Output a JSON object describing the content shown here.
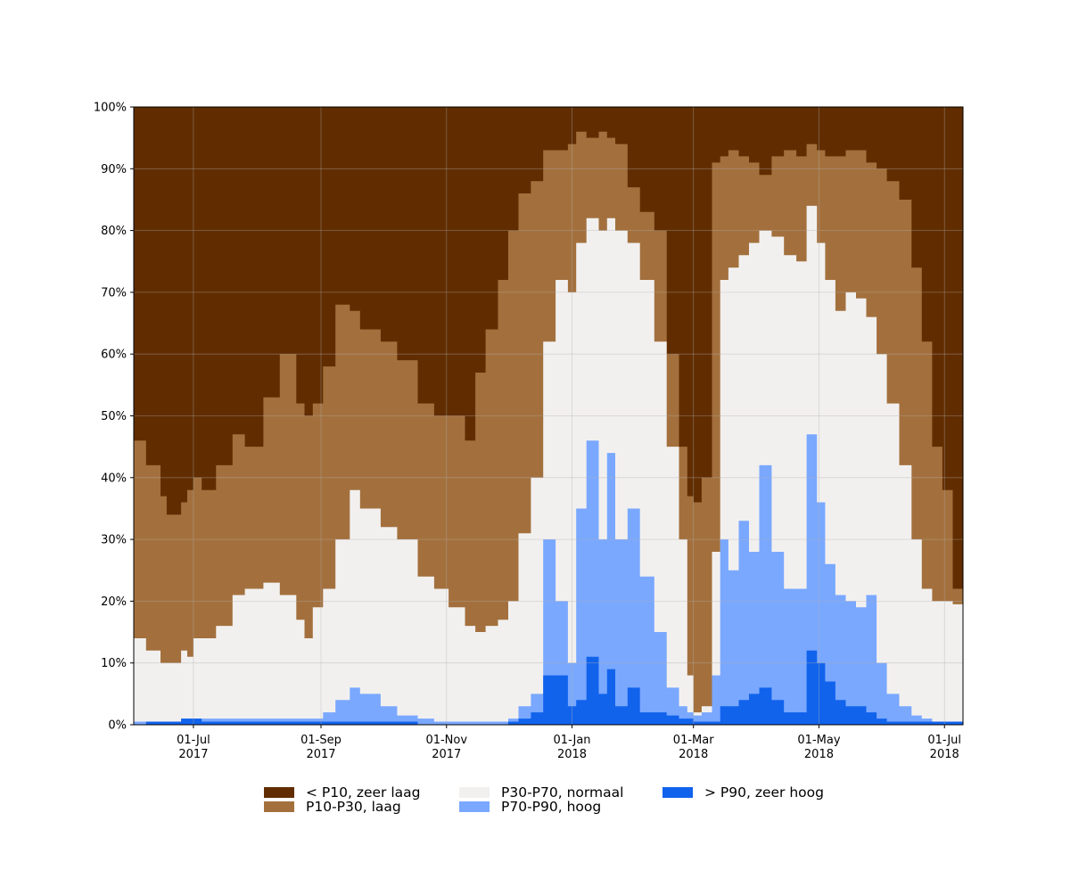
{
  "chart_data": {
    "type": "area",
    "stacked": true,
    "normalized_percent": true,
    "title": "",
    "xlabel": "",
    "ylabel": "",
    "x_range": [
      "2017-06-02",
      "2018-07-10"
    ],
    "ylim": [
      0,
      100
    ],
    "y_ticks": [
      "0%",
      "10%",
      "20%",
      "30%",
      "40%",
      "50%",
      "60%",
      "70%",
      "80%",
      "90%",
      "100%"
    ],
    "x_ticks": [
      {
        "date": "2017-07-01",
        "label": "01-Jul",
        "year": "2017"
      },
      {
        "date": "2017-09-01",
        "label": "01-Sep",
        "year": "2017"
      },
      {
        "date": "2017-11-01",
        "label": "01-Nov",
        "year": "2017"
      },
      {
        "date": "2018-01-01",
        "label": "01-Jan",
        "year": "2018"
      },
      {
        "date": "2018-03-01",
        "label": "01-Mar",
        "year": "2018"
      },
      {
        "date": "2018-05-01",
        "label": "01-May",
        "year": "2018"
      },
      {
        "date": "2018-07-01",
        "label": "01-Jul",
        "year": "2018"
      }
    ],
    "grid": true,
    "legend_position": "bottom",
    "series": [
      {
        "name": "< P10, zeer laag",
        "color": "#612d00"
      },
      {
        "name": "P10-P30, laag",
        "color": "#a3703d"
      },
      {
        "name": "P30-P70, normaal",
        "color": "#f2f0ef"
      },
      {
        "name": "P70-P90, hoog",
        "color": "#7aa8ff"
      },
      {
        "name": "> P90, zeer hoog",
        "color": "#1163ec"
      }
    ],
    "cumulative_boundaries_percent": {
      "x": [
        "2017-06-02",
        "2017-06-08",
        "2017-06-15",
        "2017-06-18",
        "2017-06-25",
        "2017-06-28",
        "2017-07-01",
        "2017-07-05",
        "2017-07-12",
        "2017-07-20",
        "2017-07-26",
        "2017-08-04",
        "2017-08-12",
        "2017-08-20",
        "2017-08-24",
        "2017-08-28",
        "2017-09-02",
        "2017-09-08",
        "2017-09-15",
        "2017-09-20",
        "2017-09-30",
        "2017-10-08",
        "2017-10-18",
        "2017-10-26",
        "2017-11-02",
        "2017-11-10",
        "2017-11-15",
        "2017-11-20",
        "2017-11-26",
        "2017-12-01",
        "2017-12-06",
        "2017-12-12",
        "2017-12-18",
        "2017-12-24",
        "2017-12-30",
        "2018-01-03",
        "2018-01-08",
        "2018-01-14",
        "2018-01-18",
        "2018-01-22",
        "2018-01-28",
        "2018-02-03",
        "2018-02-10",
        "2018-02-16",
        "2018-02-22",
        "2018-02-26",
        "2018-03-01",
        "2018-03-05",
        "2018-03-10",
        "2018-03-14",
        "2018-03-18",
        "2018-03-23",
        "2018-03-28",
        "2018-04-02",
        "2018-04-08",
        "2018-04-14",
        "2018-04-20",
        "2018-04-25",
        "2018-04-30",
        "2018-05-04",
        "2018-05-09",
        "2018-05-14",
        "2018-05-19",
        "2018-05-24",
        "2018-05-29",
        "2018-06-03",
        "2018-06-09",
        "2018-06-15",
        "2018-06-20",
        "2018-06-25",
        "2018-06-30",
        "2018-07-05",
        "2018-07-10"
      ],
      "zeer_hoog_top": [
        0,
        0.5,
        0.5,
        0.5,
        1,
        1,
        1,
        0.5,
        0.5,
        0.5,
        0.5,
        0.5,
        0.5,
        0.5,
        0.5,
        0.5,
        0.5,
        0.5,
        0.5,
        0.5,
        0.5,
        0.5,
        0,
        0,
        0,
        0,
        0,
        0,
        0,
        0.5,
        1,
        2,
        8,
        8,
        3,
        4,
        11,
        5,
        9,
        3,
        6,
        2,
        2,
        1.5,
        1,
        1,
        0.5,
        0.5,
        0.5,
        3,
        3,
        4,
        5,
        6,
        4,
        2,
        2,
        12,
        10,
        7,
        4,
        3,
        3,
        2,
        1,
        0.5,
        0.5,
        0.5,
        0.5,
        0.5,
        0.5,
        0.5,
        0.5
      ],
      "hoog_top": [
        0.5,
        0.5,
        0.5,
        0.5,
        1,
        1,
        1,
        1,
        1,
        1,
        1,
        1,
        1,
        1,
        1,
        1,
        2,
        4,
        6,
        5,
        3,
        1.5,
        1,
        0.5,
        0.5,
        0.5,
        0.5,
        0.5,
        0.5,
        1,
        3,
        5,
        30,
        20,
        10,
        35,
        46,
        30,
        44,
        30,
        35,
        24,
        15,
        6,
        3,
        2,
        1.5,
        2,
        8,
        30,
        25,
        33,
        28,
        42,
        28,
        22,
        22,
        47,
        36,
        26,
        21,
        20,
        19,
        21,
        10,
        5,
        3,
        1.5,
        1,
        0.5,
        0.5,
        0.5,
        0.5
      ],
      "normaal_top": [
        14,
        12,
        10,
        10,
        12,
        11,
        14,
        14,
        16,
        21,
        22,
        23,
        21,
        17,
        14,
        19,
        22,
        30,
        38,
        35,
        32,
        30,
        24,
        22,
        19,
        16,
        15,
        16,
        17,
        20,
        31,
        40,
        62,
        72,
        70,
        78,
        82,
        80,
        82,
        80,
        78,
        72,
        62,
        45,
        30,
        8,
        2,
        3,
        28,
        72,
        74,
        76,
        78,
        80,
        79,
        76,
        75,
        84,
        78,
        72,
        67,
        70,
        69,
        66,
        60,
        52,
        42,
        30,
        22,
        20,
        20,
        19.5,
        19.5
      ],
      "laag_top": [
        46,
        42,
        37,
        34,
        36,
        38,
        40,
        38,
        42,
        47,
        45,
        53,
        60,
        52,
        50,
        52,
        58,
        68,
        67,
        64,
        62,
        59,
        52,
        50,
        50,
        46,
        57,
        64,
        72,
        80,
        86,
        88,
        93,
        93,
        94,
        96,
        95,
        96,
        95,
        94,
        87,
        83,
        80,
        60,
        45,
        37,
        36,
        40,
        91,
        92,
        93,
        92,
        91,
        89,
        92,
        93,
        92,
        94,
        93,
        92,
        92,
        93,
        93,
        91,
        90,
        88,
        85,
        74,
        62,
        45,
        38,
        22,
        19.5
      ],
      "zeer_laag_top": [
        100,
        100,
        100,
        100,
        100,
        100,
        100,
        100,
        100,
        100,
        100,
        100,
        100,
        100,
        100,
        100,
        100,
        100,
        100,
        100,
        100,
        100,
        100,
        100,
        100,
        100,
        100,
        100,
        100,
        100,
        100,
        100,
        100,
        100,
        100,
        100,
        100,
        100,
        100,
        100,
        100,
        100,
        100,
        100,
        100,
        100,
        100,
        100,
        100,
        100,
        100,
        100,
        100,
        100,
        100,
        100,
        100,
        100,
        100,
        100,
        100,
        100,
        100,
        100,
        100,
        100,
        100,
        100,
        100,
        100,
        100,
        100,
        100
      ]
    }
  }
}
